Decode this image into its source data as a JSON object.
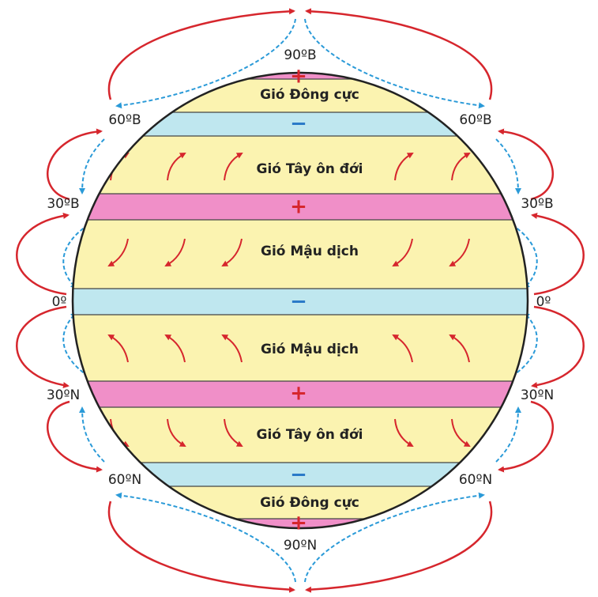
{
  "latitudes": [
    {
      "left": "90ºB"
    },
    {
      "left": "60ºB",
      "right": "60ºB"
    },
    {
      "left": "30ºB",
      "right": "30ºB"
    },
    {
      "left": "0º",
      "right": "0º"
    },
    {
      "left": "30ºN",
      "right": "30ºN"
    },
    {
      "left": "60ºN",
      "right": "60ºN"
    },
    {
      "left": "90ºN"
    }
  ],
  "belts": [
    "Gió Đông cực",
    "Gió Tây ôn đới",
    "Gió Mậu dịch",
    "Gió Mậu dịch",
    "Gió Tây ôn đới",
    "Gió Đông cực"
  ],
  "pressure": [
    "+",
    "−",
    "+",
    "−",
    "+",
    "−",
    "+"
  ]
}
